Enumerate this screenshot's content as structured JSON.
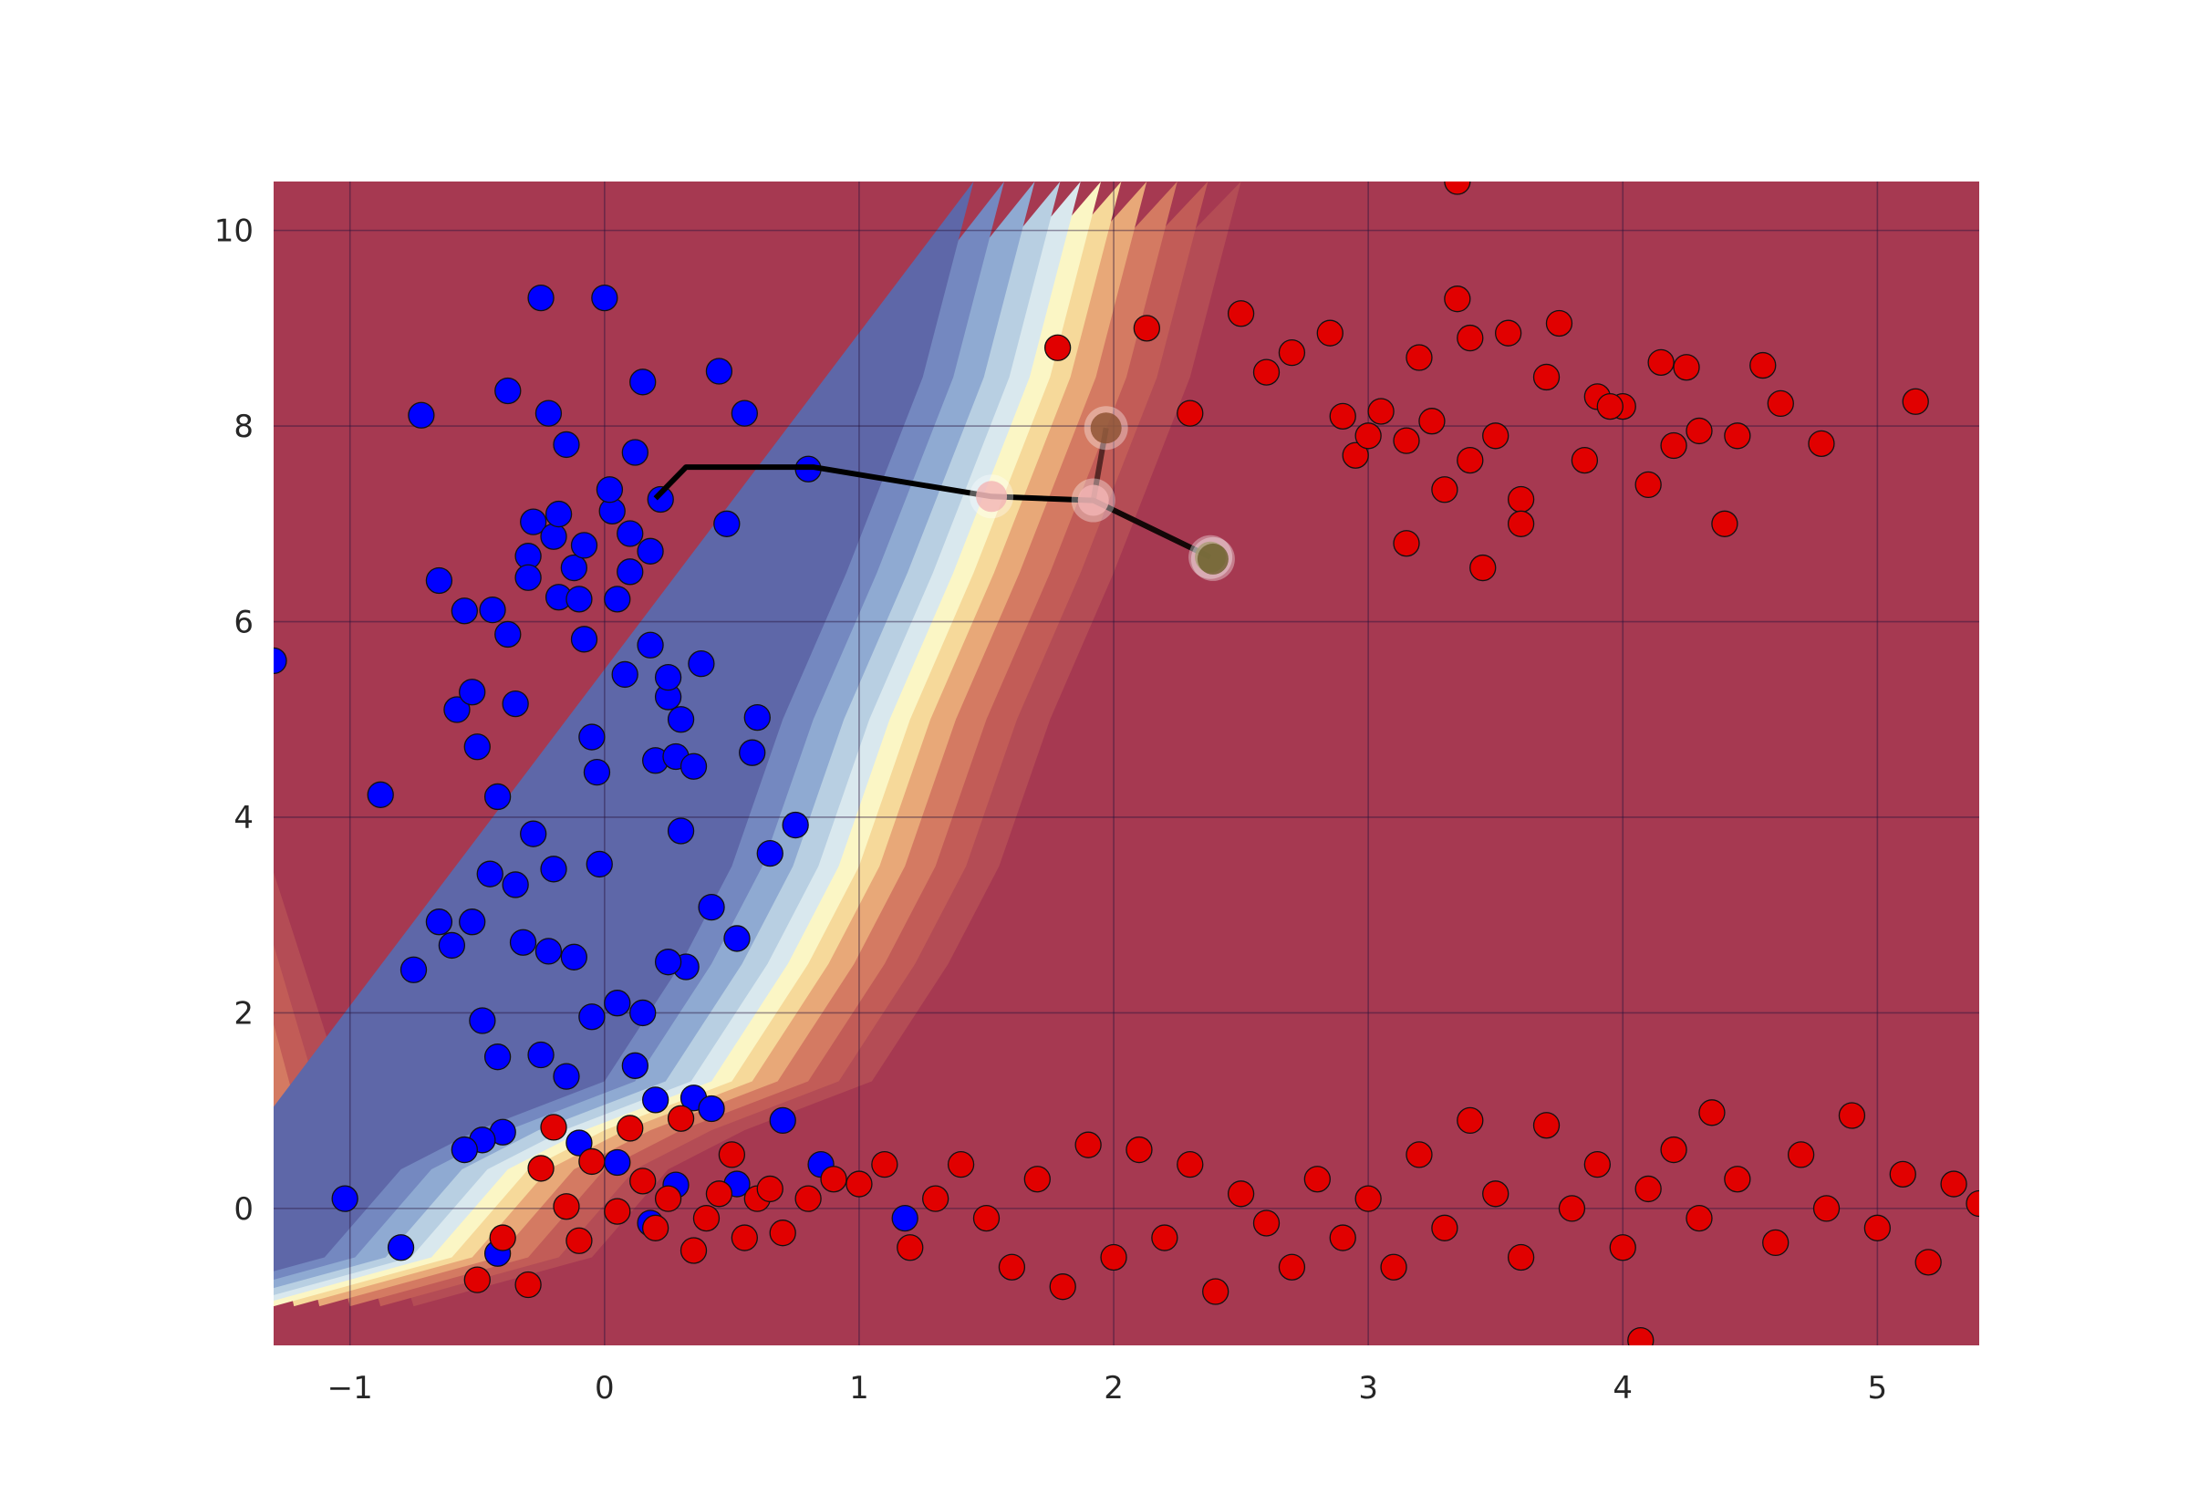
{
  "chart_data": {
    "type": "scatter",
    "xlim": [
      -1.3,
      5.4
    ],
    "ylim": [
      -1.4,
      10.5
    ],
    "grid": true,
    "xticks": [
      "−1",
      "0",
      "1",
      "2",
      "3",
      "4",
      "5"
    ],
    "yticks": [
      "0",
      "2",
      "4",
      "6",
      "8",
      "10"
    ],
    "xtick_values": [
      -1,
      0,
      1,
      2,
      3,
      4,
      5
    ],
    "ytick_values": [
      0,
      2,
      4,
      6,
      8,
      10
    ],
    "background": "decision-boundary-contour",
    "boundary": [
      [
        -1.3,
        -1.0
      ],
      [
        -0.6,
        -0.5
      ],
      [
        -0.3,
        0.4
      ],
      [
        0.0,
        0.8
      ],
      [
        0.5,
        1.3
      ],
      [
        0.8,
        2.5
      ],
      [
        1.0,
        3.5
      ],
      [
        1.2,
        5.0
      ],
      [
        1.45,
        6.5
      ],
      [
        1.75,
        8.5
      ],
      [
        1.95,
        10.5
      ]
    ],
    "colors": {
      "blue_region": "#5e67a8",
      "red_region": "#a63951",
      "blue_points": "#0000ff",
      "red_points": "#e10000",
      "boundary_mid": "#fbf6c5",
      "path": "#000000"
    },
    "blue_points": [
      [
        -1.3,
        5.6
      ],
      [
        -1.02,
        0.1
      ],
      [
        -0.88,
        4.23
      ],
      [
        -0.8,
        -0.4
      ],
      [
        -0.75,
        2.44
      ],
      [
        -0.72,
        8.11
      ],
      [
        -0.65,
        6.42
      ],
      [
        -0.58,
        5.1
      ],
      [
        -0.55,
        6.11
      ],
      [
        -0.52,
        5.28
      ],
      [
        -0.48,
        1.92
      ],
      [
        -0.44,
        6.12
      ],
      [
        -0.42,
        4.21
      ],
      [
        -0.4,
        0.78
      ],
      [
        -0.38,
        8.36
      ],
      [
        -0.35,
        5.16
      ],
      [
        -0.3,
        6.67
      ],
      [
        -0.28,
        7.02
      ],
      [
        -0.25,
        9.31
      ],
      [
        -0.22,
        8.13
      ],
      [
        -0.2,
        6.87
      ],
      [
        -0.18,
        6.25
      ],
      [
        -0.15,
        7.81
      ],
      [
        -0.12,
        6.55
      ],
      [
        -0.1,
        6.23
      ],
      [
        -0.08,
        5.82
      ],
      [
        -0.05,
        4.82
      ],
      [
        -0.03,
        4.46
      ],
      [
        -0.02,
        3.52
      ],
      [
        0.0,
        9.31
      ],
      [
        0.03,
        7.13
      ],
      [
        0.05,
        6.23
      ],
      [
        0.08,
        5.46
      ],
      [
        0.1,
        6.51
      ],
      [
        0.12,
        7.73
      ],
      [
        0.15,
        8.45
      ],
      [
        0.18,
        5.76
      ],
      [
        0.2,
        4.58
      ],
      [
        0.22,
        7.25
      ],
      [
        0.25,
        5.23
      ],
      [
        0.28,
        4.62
      ],
      [
        0.3,
        3.86
      ],
      [
        0.32,
        2.47
      ],
      [
        0.35,
        1.13
      ],
      [
        0.38,
        5.57
      ],
      [
        0.42,
        3.08
      ],
      [
        0.45,
        8.56
      ],
      [
        0.48,
        7.0
      ],
      [
        0.52,
        2.76
      ],
      [
        0.55,
        8.13
      ],
      [
        0.58,
        4.66
      ],
      [
        0.6,
        5.02
      ],
      [
        0.65,
        3.63
      ],
      [
        0.7,
        0.9
      ],
      [
        0.75,
        3.92
      ],
      [
        0.8,
        7.56
      ],
      [
        0.85,
        0.45
      ],
      [
        -0.25,
        1.57
      ],
      [
        -0.15,
        1.35
      ],
      [
        -0.1,
        0.67
      ],
      [
        0.05,
        0.47
      ],
      [
        0.12,
        1.46
      ],
      [
        -0.05,
        1.96
      ],
      [
        -0.2,
        3.47
      ],
      [
        -0.28,
        3.83
      ],
      [
        -0.35,
        3.31
      ],
      [
        -0.45,
        3.42
      ],
      [
        -0.52,
        2.93
      ],
      [
        -0.6,
        2.69
      ],
      [
        -0.65,
        2.93
      ],
      [
        -0.5,
        4.72
      ],
      [
        -0.38,
        5.87
      ],
      [
        -0.3,
        6.45
      ],
      [
        -0.18,
        7.1
      ],
      [
        -0.08,
        6.78
      ],
      [
        0.02,
        7.35
      ],
      [
        0.1,
        6.9
      ],
      [
        0.18,
        6.72
      ],
      [
        0.25,
        5.43
      ],
      [
        0.3,
        5.0
      ],
      [
        0.35,
        4.52
      ],
      [
        0.25,
        2.52
      ],
      [
        0.15,
        2.0
      ],
      [
        0.05,
        2.1
      ],
      [
        -0.12,
        2.57
      ],
      [
        -0.22,
        2.63
      ],
      [
        -0.32,
        2.72
      ],
      [
        -0.42,
        1.55
      ],
      [
        -0.48,
        0.7
      ],
      [
        0.28,
        0.24
      ],
      [
        0.52,
        0.25
      ],
      [
        1.18,
        -0.1
      ],
      [
        -0.42,
        -0.46
      ],
      [
        0.18,
        -0.15
      ],
      [
        -0.55,
        0.6
      ],
      [
        0.42,
        1.02
      ],
      [
        0.2,
        1.11
      ]
    ],
    "red_points": [
      [
        -0.5,
        -0.73
      ],
      [
        -0.4,
        -0.3
      ],
      [
        -0.3,
        -0.78
      ],
      [
        -0.25,
        0.41
      ],
      [
        -0.2,
        0.83
      ],
      [
        -0.15,
        0.02
      ],
      [
        -0.1,
        -0.33
      ],
      [
        -0.05,
        0.48
      ],
      [
        0.05,
        -0.03
      ],
      [
        0.1,
        0.82
      ],
      [
        0.15,
        0.28
      ],
      [
        0.2,
        -0.2
      ],
      [
        0.25,
        0.1
      ],
      [
        0.3,
        0.92
      ],
      [
        0.35,
        -0.43
      ],
      [
        0.4,
        -0.1
      ],
      [
        0.45,
        0.15
      ],
      [
        0.5,
        0.55
      ],
      [
        0.55,
        -0.3
      ],
      [
        0.6,
        0.1
      ],
      [
        0.65,
        0.2
      ],
      [
        0.7,
        -0.25
      ],
      [
        0.8,
        0.1
      ],
      [
        0.9,
        0.3
      ],
      [
        1.0,
        0.25
      ],
      [
        1.1,
        0.45
      ],
      [
        1.2,
        -0.4
      ],
      [
        1.3,
        0.1
      ],
      [
        1.4,
        0.45
      ],
      [
        1.5,
        -0.1
      ],
      [
        1.6,
        -0.6
      ],
      [
        1.7,
        0.3
      ],
      [
        1.8,
        -0.8
      ],
      [
        1.9,
        0.65
      ],
      [
        2.0,
        -0.5
      ],
      [
        2.1,
        0.6
      ],
      [
        2.2,
        -0.3
      ],
      [
        2.3,
        0.45
      ],
      [
        2.4,
        -0.85
      ],
      [
        2.5,
        0.15
      ],
      [
        2.6,
        -0.15
      ],
      [
        2.7,
        -0.6
      ],
      [
        2.8,
        0.3
      ],
      [
        2.9,
        -0.3
      ],
      [
        3.0,
        0.1
      ],
      [
        3.1,
        -0.6
      ],
      [
        3.2,
        0.55
      ],
      [
        3.3,
        -0.2
      ],
      [
        3.4,
        0.9
      ],
      [
        3.5,
        0.15
      ],
      [
        3.6,
        -0.5
      ],
      [
        3.7,
        0.85
      ],
      [
        3.8,
        0.0
      ],
      [
        3.9,
        0.45
      ],
      [
        4.0,
        -0.4
      ],
      [
        4.1,
        0.2
      ],
      [
        4.2,
        0.6
      ],
      [
        4.3,
        -0.1
      ],
      [
        4.35,
        0.98
      ],
      [
        4.45,
        0.3
      ],
      [
        4.6,
        -0.35
      ],
      [
        4.7,
        0.55
      ],
      [
        4.8,
        0.0
      ],
      [
        4.9,
        0.95
      ],
      [
        5.0,
        -0.2
      ],
      [
        5.1,
        0.35
      ],
      [
        5.2,
        -0.55
      ],
      [
        5.3,
        0.25
      ],
      [
        5.4,
        0.05
      ],
      [
        1.78,
        8.8
      ],
      [
        2.13,
        9.0
      ],
      [
        2.3,
        8.13
      ],
      [
        2.5,
        9.15
      ],
      [
        2.6,
        8.55
      ],
      [
        2.7,
        8.75
      ],
      [
        2.85,
        8.95
      ],
      [
        2.95,
        7.7
      ],
      [
        3.05,
        8.15
      ],
      [
        3.15,
        7.85
      ],
      [
        3.2,
        8.7
      ],
      [
        3.3,
        7.35
      ],
      [
        3.35,
        9.3
      ],
      [
        3.4,
        8.9
      ],
      [
        3.45,
        6.55
      ],
      [
        3.5,
        7.9
      ],
      [
        3.55,
        8.95
      ],
      [
        3.6,
        7.25
      ],
      [
        3.7,
        8.5
      ],
      [
        3.75,
        9.05
      ],
      [
        3.85,
        7.65
      ],
      [
        3.9,
        8.3
      ],
      [
        4.0,
        8.2
      ],
      [
        4.1,
        7.4
      ],
      [
        4.15,
        8.65
      ],
      [
        4.2,
        7.8
      ],
      [
        4.3,
        7.95
      ],
      [
        4.4,
        7.0
      ],
      [
        4.55,
        8.62
      ],
      [
        4.62,
        8.23
      ],
      [
        4.78,
        7.82
      ],
      [
        5.15,
        8.25
      ],
      [
        3.15,
        6.8
      ],
      [
        3.0,
        7.9
      ],
      [
        2.9,
        8.1
      ],
      [
        3.25,
        8.05
      ],
      [
        3.4,
        7.65
      ],
      [
        3.6,
        7.0
      ],
      [
        3.95,
        8.2
      ],
      [
        4.25,
        8.6
      ],
      [
        4.45,
        7.9
      ],
      [
        3.35,
        10.5
      ],
      [
        4.07,
        -1.35
      ]
    ],
    "path_points": [
      [
        0.2,
        7.26
      ],
      [
        0.32,
        7.58
      ],
      [
        0.82,
        7.58
      ],
      [
        1.52,
        7.28
      ],
      [
        1.92,
        7.24
      ],
      [
        2.38,
        6.66
      ]
    ],
    "path_points_2": [
      [
        1.97,
        7.98
      ],
      [
        1.92,
        7.24
      ],
      [
        2.38,
        6.66
      ]
    ],
    "highlight_points": [
      {
        "pos": [
          1.52,
          7.28
        ],
        "fill": "#f3b4b4"
      },
      {
        "pos": [
          1.92,
          7.24
        ],
        "fill": "#f3b4b4"
      },
      {
        "pos": [
          1.97,
          7.98
        ],
        "fill": "#8a4d2d"
      },
      {
        "pos": [
          2.38,
          6.66
        ],
        "fill": "#7a6a2a"
      },
      {
        "pos": [
          2.39,
          6.64
        ],
        "fill": "#6b5e2a"
      }
    ]
  }
}
